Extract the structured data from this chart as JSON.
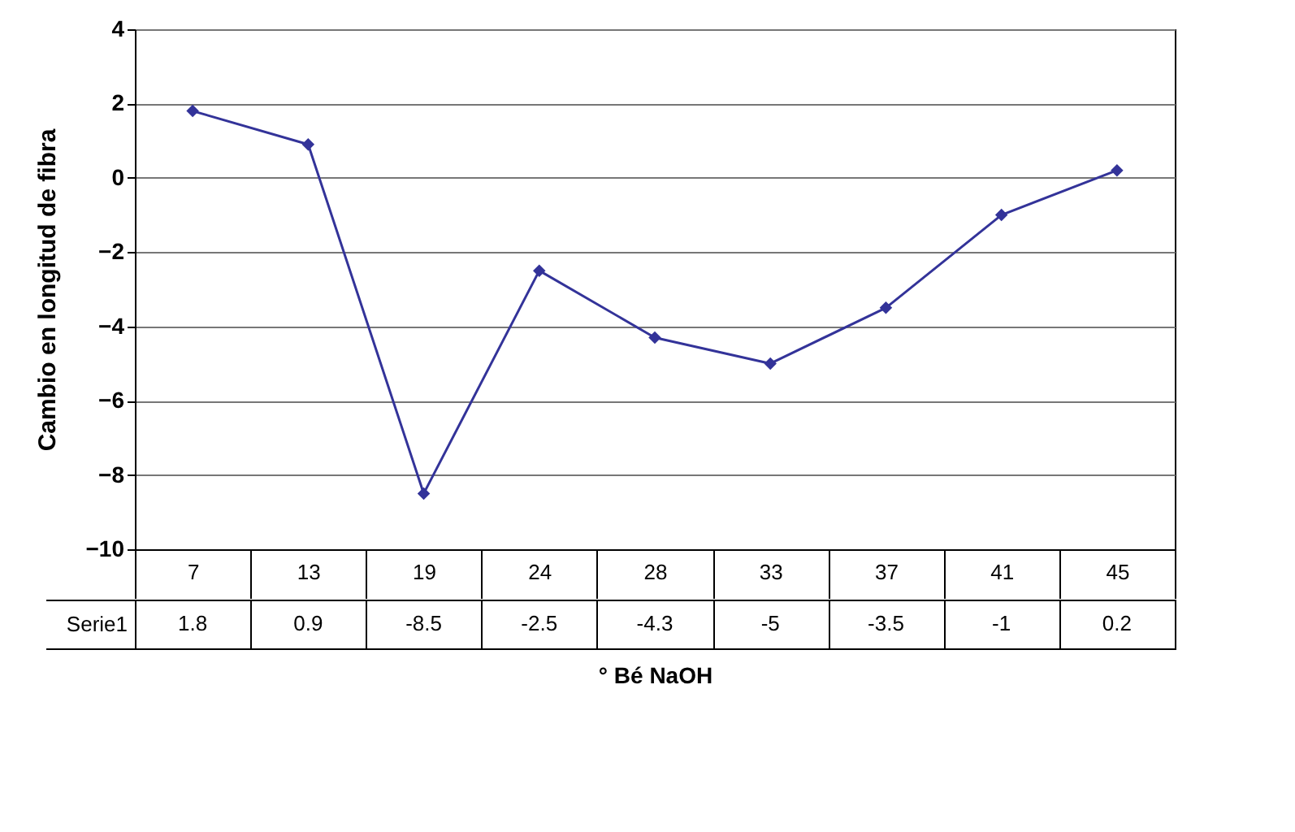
{
  "chart_data": {
    "type": "line",
    "ylabel": "Cambio en longitud de fibra",
    "xlabel": "° Bé NaOH",
    "categories": [
      "7",
      "13",
      "19",
      "24",
      "28",
      "33",
      "37",
      "41",
      "45"
    ],
    "series": [
      {
        "name": "Serie1",
        "color": "#333399",
        "values": [
          1.8,
          0.9,
          -8.5,
          -2.5,
          -4.3,
          -5,
          -3.5,
          -1,
          0.2
        ]
      }
    ],
    "ylim": [
      -10,
      4
    ],
    "yticks": [
      -10,
      -8,
      -6,
      -4,
      -2,
      0,
      2,
      4
    ],
    "grid": "y",
    "marker": "diamond",
    "data_labels": true
  }
}
